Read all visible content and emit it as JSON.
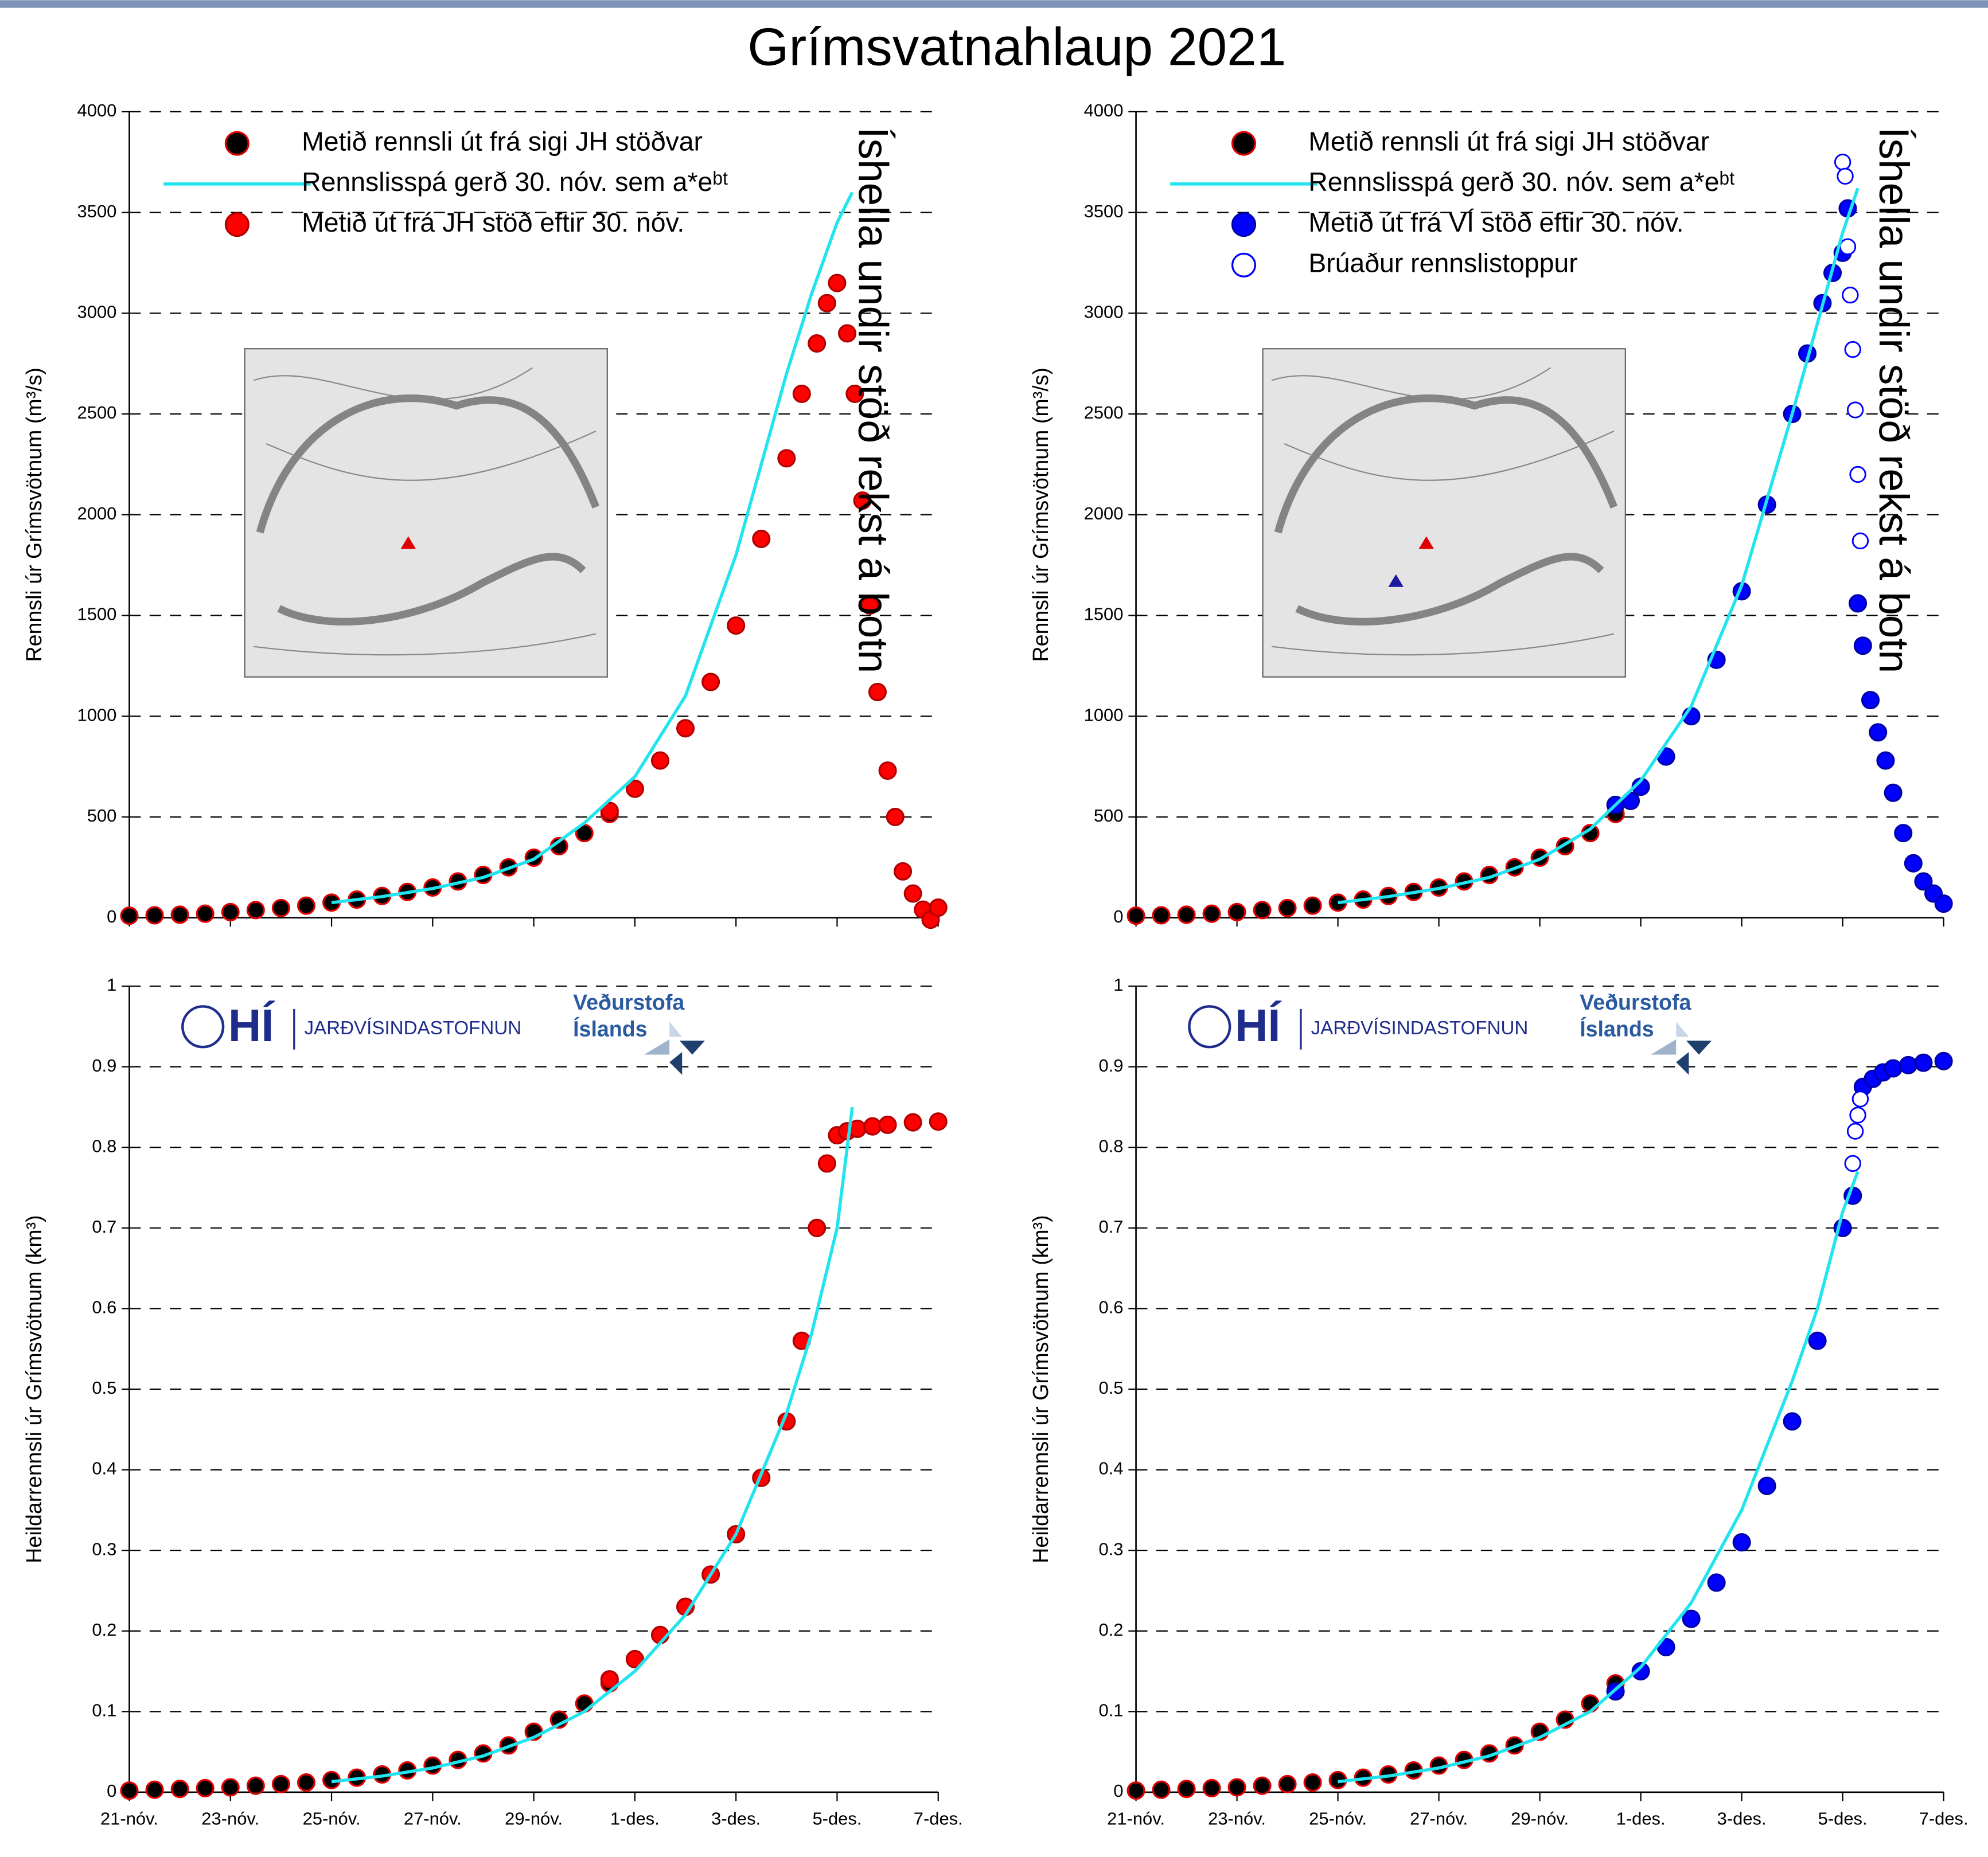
{
  "title": "Grímsvatnahlaup 2021",
  "logos": {
    "hi": "HÍ",
    "institute": "JARÐVÍSINDASTOFNUN",
    "met_line1": "Veðurstofa",
    "met_line2": "Íslands"
  },
  "chart_data": [
    {
      "type": "scatter",
      "ylabel": "Rennsli úr Grímsvötnum (m³/s)",
      "xlim": [
        0,
        16
      ],
      "xticks": [
        0,
        2,
        4,
        6,
        8,
        10,
        12,
        14,
        16
      ],
      "ylim": [
        0,
        4000
      ],
      "yticks": [
        0,
        500,
        1000,
        1500,
        2000,
        2500,
        3000,
        3500,
        4000
      ],
      "grid": true,
      "legend": "upper left",
      "shade": {
        "xlim": [
          13.6,
          16
        ],
        "color": "#c8c8c8",
        "label": "Íshella undir stöð rekst á botn"
      },
      "series": [
        {
          "name": "Metið rennsli út frá sigi JH stöðvar",
          "mode": "marker",
          "color": "#000000",
          "edge": "#e00000",
          "x": [
            0,
            0.5,
            1,
            1.5,
            2,
            2.5,
            3,
            3.5,
            4,
            4.5,
            5,
            5.5,
            6,
            6.5,
            7,
            7.5,
            8,
            8.5,
            9,
            9.5
          ],
          "values": [
            10,
            12,
            15,
            20,
            28,
            38,
            48,
            60,
            75,
            90,
            108,
            128,
            150,
            180,
            212,
            250,
            298,
            355,
            420,
            515
          ]
        },
        {
          "name": "Rennslisspá gerð 30. nóv. sem a*eᵇᵗ",
          "mode": "line",
          "color": "#22e4ee",
          "x": [
            4,
            5,
            6,
            7,
            8,
            9,
            10,
            11,
            12,
            13,
            13.5,
            14,
            14.3
          ],
          "values": [
            75,
            105,
            145,
            200,
            290,
            470,
            700,
            1100,
            1800,
            2700,
            3100,
            3450,
            3600
          ]
        },
        {
          "name": "Metið út frá JH stöð eftir 30. nóv.",
          "mode": "marker",
          "color": "#ff0000",
          "edge": "#b00000",
          "x": [
            9.5,
            10,
            10.5,
            11,
            11.5,
            12,
            12.5,
            13,
            13.3,
            13.6,
            13.8,
            14,
            14.2,
            14.35,
            14.5,
            14.65,
            14.8,
            15,
            15.15,
            15.3,
            15.5,
            15.7,
            15.85,
            16
          ],
          "values": [
            530,
            640,
            780,
            940,
            1170,
            1450,
            1880,
            2280,
            2600,
            2850,
            3050,
            3150,
            2900,
            2600,
            2070,
            1550,
            1120,
            730,
            500,
            230,
            120,
            40,
            -10,
            50
          ]
        }
      ]
    },
    {
      "type": "scatter",
      "ylabel": "Rennsli úr Grímsvötnum (m³/s)",
      "xlim": [
        0,
        16
      ],
      "xticks": [
        0,
        2,
        4,
        6,
        8,
        10,
        12,
        14,
        16
      ],
      "ylim": [
        0,
        4000
      ],
      "yticks": [
        0,
        500,
        1000,
        1500,
        2000,
        2500,
        3000,
        3500,
        4000
      ],
      "grid": true,
      "legend": "upper left",
      "shade": {
        "xlim": [
          14.2,
          16
        ],
        "color": "#c8c8c8",
        "label": "Íshella undir stöð rekst á botn"
      },
      "series": [
        {
          "name": "Metið rennsli út frá sigi JH stöðvar",
          "mode": "marker",
          "color": "#000000",
          "edge": "#e00000",
          "x": [
            0,
            0.5,
            1,
            1.5,
            2,
            2.5,
            3,
            3.5,
            4,
            4.5,
            5,
            5.5,
            6,
            6.5,
            7,
            7.5,
            8,
            8.5,
            9,
            9.5
          ],
          "values": [
            10,
            12,
            15,
            20,
            28,
            38,
            48,
            60,
            75,
            90,
            108,
            128,
            150,
            180,
            212,
            250,
            298,
            355,
            420,
            515
          ]
        },
        {
          "name": "Rennslisspá gerð 30. nóv. sem a*eᵇᵗ",
          "mode": "line",
          "color": "#22e4ee",
          "x": [
            4,
            5,
            6,
            7,
            8,
            9,
            10,
            11,
            12,
            13,
            13.5,
            14,
            14.3
          ],
          "values": [
            75,
            105,
            145,
            200,
            290,
            440,
            680,
            1050,
            1650,
            2500,
            2950,
            3400,
            3620
          ]
        },
        {
          "name": "Metið út frá VÍ stöð eftir 30. nóv.",
          "mode": "marker",
          "color": "#0000ff",
          "edge": "#0000aa",
          "x": [
            9.5,
            9.8,
            10,
            10.5,
            11,
            11.5,
            12,
            12.5,
            13,
            13.3,
            13.6,
            13.8,
            14,
            14.1,
            14.3,
            14.4,
            14.55,
            14.7,
            14.85,
            15,
            15.2,
            15.4,
            15.6,
            15.8,
            16
          ],
          "values": [
            560,
            580,
            650,
            800,
            1000,
            1280,
            1620,
            2050,
            2500,
            2800,
            3050,
            3200,
            3300,
            3520,
            1560,
            1350,
            1080,
            920,
            780,
            620,
            420,
            270,
            180,
            120,
            70
          ]
        },
        {
          "name": "Brúaður rennslistoppur",
          "mode": "open-marker",
          "color": "#0000ff",
          "x": [
            14,
            14.05,
            14.1,
            14.15,
            14.2,
            14.25,
            14.3,
            14.35
          ],
          "values": [
            3750,
            3680,
            3330,
            3090,
            2820,
            2520,
            2200,
            1870
          ]
        }
      ]
    },
    {
      "type": "scatter",
      "ylabel": "Heildarrennsli úr Grímsvötnum (km³)",
      "xlim": [
        0,
        16
      ],
      "xticks": [
        {
          "value": 0,
          "label": "21-nóv."
        },
        {
          "value": 2,
          "label": "23-nóv."
        },
        {
          "value": 4,
          "label": "25-nóv."
        },
        {
          "value": 6,
          "label": "27-nóv."
        },
        {
          "value": 8,
          "label": "29-nóv."
        },
        {
          "value": 10,
          "label": "1-des."
        },
        {
          "value": 12,
          "label": "3-des."
        },
        {
          "value": 14,
          "label": "5-des."
        },
        {
          "value": 16,
          "label": "7-des."
        }
      ],
      "ylim": [
        0,
        1
      ],
      "yticks": [
        0,
        0.1,
        0.2,
        0.3,
        0.4,
        0.5,
        0.6,
        0.7,
        0.8,
        0.9,
        1
      ],
      "grid": true,
      "shade": {
        "xlim": [
          13.6,
          16
        ],
        "color": "#c8c8c8"
      },
      "series": [
        {
          "mode": "marker",
          "color": "#000000",
          "edge": "#e00000",
          "x": [
            0,
            0.5,
            1,
            1.5,
            2,
            2.5,
            3,
            3.5,
            4,
            4.5,
            5,
            5.5,
            6,
            6.5,
            7,
            7.5,
            8,
            8.5,
            9,
            9.5
          ],
          "values": [
            0.002,
            0.003,
            0.004,
            0.005,
            0.006,
            0.008,
            0.01,
            0.012,
            0.015,
            0.018,
            0.022,
            0.027,
            0.033,
            0.04,
            0.048,
            0.058,
            0.075,
            0.09,
            0.11,
            0.135
          ]
        },
        {
          "mode": "line",
          "color": "#22e4ee",
          "x": [
            4,
            5,
            6,
            7,
            8,
            9,
            10,
            11,
            12,
            13,
            13.5,
            14,
            14.3
          ],
          "values": [
            0.013,
            0.02,
            0.03,
            0.045,
            0.068,
            0.1,
            0.15,
            0.22,
            0.32,
            0.47,
            0.57,
            0.7,
            0.85
          ]
        },
        {
          "mode": "marker",
          "color": "#ff0000",
          "edge": "#b00000",
          "x": [
            9.5,
            10,
            10.5,
            11,
            11.5,
            12,
            12.5,
            13,
            13.3,
            13.6,
            13.8,
            14,
            14.2,
            14.4,
            14.7,
            15,
            15.5,
            16
          ],
          "values": [
            0.14,
            0.165,
            0.195,
            0.23,
            0.27,
            0.32,
            0.39,
            0.46,
            0.56,
            0.7,
            0.78,
            0.815,
            0.82,
            0.823,
            0.826,
            0.828,
            0.831,
            0.832
          ]
        }
      ]
    },
    {
      "type": "scatter",
      "ylabel": "Heildarrennsli úr Grímsvötnum (km³)",
      "xlim": [
        0,
        16
      ],
      "xticks": [
        {
          "value": 0,
          "label": "21-nóv."
        },
        {
          "value": 2,
          "label": "23-nóv."
        },
        {
          "value": 4,
          "label": "25-nóv."
        },
        {
          "value": 6,
          "label": "27-nóv."
        },
        {
          "value": 8,
          "label": "29-nóv."
        },
        {
          "value": 10,
          "label": "1-des."
        },
        {
          "value": 12,
          "label": "3-des."
        },
        {
          "value": 14,
          "label": "5-des."
        },
        {
          "value": 16,
          "label": "7-des."
        }
      ],
      "ylim": [
        0,
        1
      ],
      "yticks": [
        0,
        0.1,
        0.2,
        0.3,
        0.4,
        0.5,
        0.6,
        0.7,
        0.8,
        0.9,
        1
      ],
      "grid": true,
      "shade": {
        "xlim": [
          14.2,
          16
        ],
        "color": "#c8c8c8"
      },
      "series": [
        {
          "mode": "marker",
          "color": "#000000",
          "edge": "#e00000",
          "x": [
            0,
            0.5,
            1,
            1.5,
            2,
            2.5,
            3,
            3.5,
            4,
            4.5,
            5,
            5.5,
            6,
            6.5,
            7,
            7.5,
            8,
            8.5,
            9,
            9.5
          ],
          "values": [
            0.002,
            0.003,
            0.004,
            0.005,
            0.006,
            0.008,
            0.01,
            0.012,
            0.015,
            0.018,
            0.022,
            0.027,
            0.033,
            0.04,
            0.048,
            0.058,
            0.075,
            0.09,
            0.11,
            0.135
          ]
        },
        {
          "mode": "line",
          "color": "#22e4ee",
          "x": [
            4,
            5,
            6,
            7,
            8,
            9,
            10,
            11,
            12,
            13,
            13.5,
            14,
            14.3
          ],
          "values": [
            0.013,
            0.02,
            0.03,
            0.045,
            0.068,
            0.1,
            0.155,
            0.235,
            0.35,
            0.51,
            0.6,
            0.72,
            0.77
          ]
        },
        {
          "mode": "marker",
          "color": "#0000ff",
          "edge": "#0000aa",
          "x": [
            9.5,
            10,
            10.5,
            11,
            11.5,
            12,
            12.5,
            13,
            13.5,
            14,
            14.2,
            14.4,
            14.6,
            14.8,
            15,
            15.3,
            15.6,
            16
          ],
          "values": [
            0.125,
            0.15,
            0.18,
            0.215,
            0.26,
            0.31,
            0.38,
            0.46,
            0.56,
            0.7,
            0.74,
            0.875,
            0.885,
            0.893,
            0.898,
            0.902,
            0.905,
            0.907
          ]
        },
        {
          "mode": "open-marker",
          "color": "#0000ff",
          "x": [
            14.2,
            14.25,
            14.3,
            14.35
          ],
          "values": [
            0.78,
            0.82,
            0.84,
            0.86
          ]
        }
      ]
    }
  ]
}
